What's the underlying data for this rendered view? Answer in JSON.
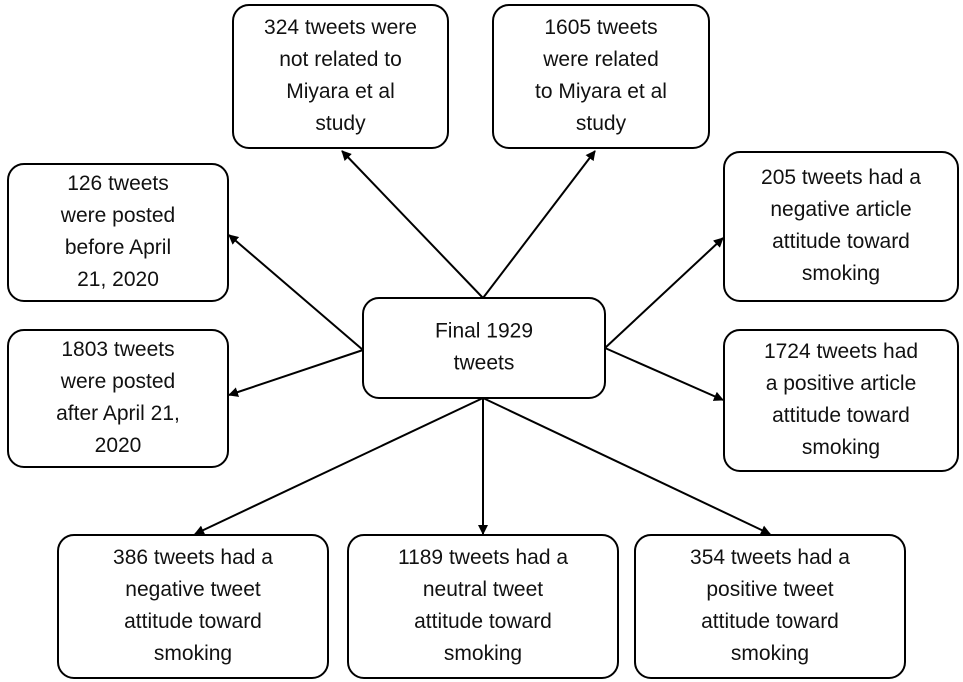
{
  "nodes": [
    {
      "id": "center",
      "lines": [
        "Final 1929",
        "tweets"
      ]
    },
    {
      "id": "top1",
      "lines": [
        "324 tweets were",
        "not related to",
        "Miyara et al",
        "study"
      ]
    },
    {
      "id": "top2",
      "lines": [
        "1605 tweets",
        "were related",
        "to Miyara et al",
        "study"
      ]
    },
    {
      "id": "left1",
      "lines": [
        "126 tweets",
        "were posted",
        "before April",
        "21, 2020"
      ]
    },
    {
      "id": "left2",
      "lines": [
        "1803 tweets",
        "were posted",
        "after April 21,",
        "2020"
      ]
    },
    {
      "id": "right1",
      "lines": [
        "205 tweets had a",
        "negative article",
        "attitude toward",
        "smoking"
      ]
    },
    {
      "id": "right2",
      "lines": [
        "1724 tweets had",
        "a positive article",
        "attitude toward",
        "smoking"
      ]
    },
    {
      "id": "bottom1",
      "lines": [
        "386 tweets had a",
        "negative tweet",
        "attitude toward",
        "smoking"
      ]
    },
    {
      "id": "bottom2",
      "lines": [
        "1189 tweets had a",
        "neutral tweet",
        "attitude toward",
        "smoking"
      ]
    },
    {
      "id": "bottom3",
      "lines": [
        "354 tweets had a",
        "positive tweet",
        "attitude toward",
        "smoking"
      ]
    }
  ]
}
